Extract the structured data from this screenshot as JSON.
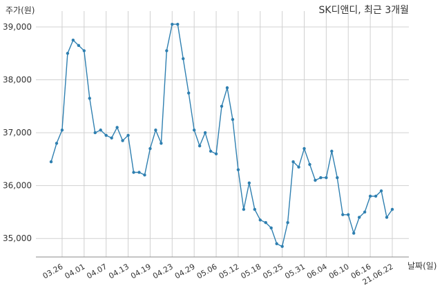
{
  "chart_data": {
    "type": "line",
    "title": "SK디앤디, 최근 3개월",
    "ylabel": "주가(원)",
    "xlabel": "날짜(일)",
    "ylim": [
      34650,
      39300
    ],
    "yticks": [
      35000,
      36000,
      37000,
      38000,
      39000
    ],
    "ytick_labels": [
      "35,000",
      "36,000",
      "37,000",
      "38,000",
      "39,000"
    ],
    "xtick_labels": [
      "03.26",
      "04.01",
      "04.07",
      "04.13",
      "04.19",
      "04.23",
      "04.29",
      "05.06",
      "05.12",
      "05.18",
      "05.25",
      "05.31",
      "06.04",
      "06.10",
      "06.16",
      "21.06.22"
    ],
    "xtick_index": [
      2,
      6,
      10,
      14,
      18,
      22,
      26,
      30,
      34,
      38,
      42,
      46,
      50,
      54,
      58,
      62
    ],
    "grid": true,
    "color": "#2e7fb0",
    "series": [
      {
        "values": [
          36450,
          36800,
          37050,
          38500,
          38750,
          38650,
          38550,
          37650,
          37000,
          37050,
          36950,
          36900,
          37100,
          36850,
          36950,
          36250,
          36250,
          36200,
          36700,
          37050,
          36800,
          38550,
          39050,
          39050,
          38400,
          37750,
          37050,
          36750,
          37000,
          36650,
          36600,
          37500,
          37850,
          37250,
          36300,
          35550,
          36050,
          35550,
          35350,
          35300,
          35200,
          34900,
          34850,
          35300,
          36450,
          36350,
          36700,
          36400,
          36100,
          36150,
          36150,
          36650,
          36150,
          35450,
          35450,
          35100,
          35400,
          35500,
          35800,
          35800,
          35900,
          35400,
          35550
        ]
      }
    ]
  }
}
